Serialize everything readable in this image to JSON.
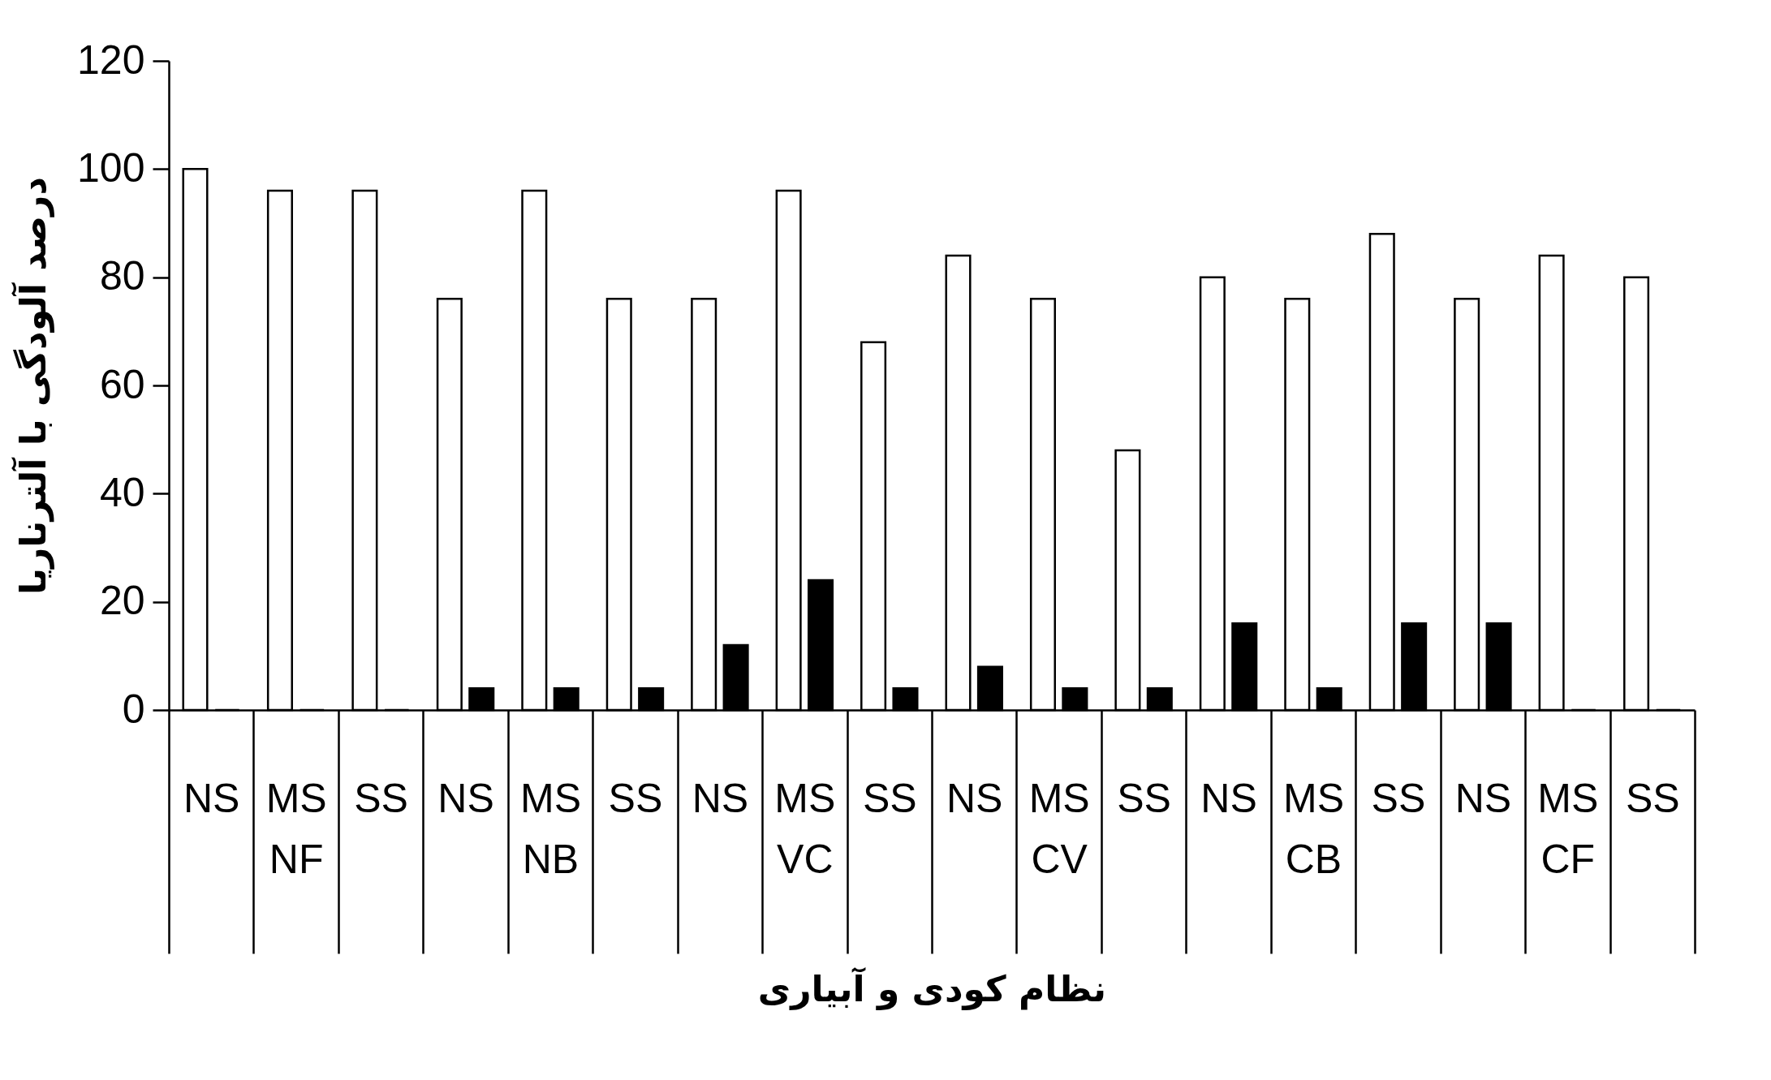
{
  "chart_data": {
    "type": "bar",
    "xlabel": "نظام کودی و آبیاری",
    "ylabel": "درصد آلودگی با آلترناریا",
    "categories": [
      "NS",
      "MS",
      "SS",
      "NS",
      "MS",
      "SS",
      "NS",
      "MS",
      "SS",
      "NS",
      "MS",
      "SS",
      "NS",
      "MS",
      "SS",
      "NS",
      "MS",
      "SS"
    ],
    "series": [
      {
        "color": "#ffffff",
        "values": [
          100,
          96,
          96,
          76,
          96,
          76,
          76,
          96,
          68,
          84,
          76,
          48,
          80,
          76,
          88,
          76,
          84,
          80
        ]
      },
      {
        "color": "#000000",
        "values": [
          0,
          0,
          0,
          4,
          4,
          4,
          12,
          24,
          4,
          8,
          4,
          4,
          16,
          4,
          16,
          16,
          0,
          0
        ]
      }
    ],
    "annotations": [
      "NF",
      "NB",
      "VC",
      "CV",
      "CB",
      "CF"
    ],
    "ylim": [
      0,
      120
    ],
    "yticks": [
      0,
      20,
      40,
      60,
      80,
      100,
      120
    ],
    "grid": false,
    "legend": false
  }
}
